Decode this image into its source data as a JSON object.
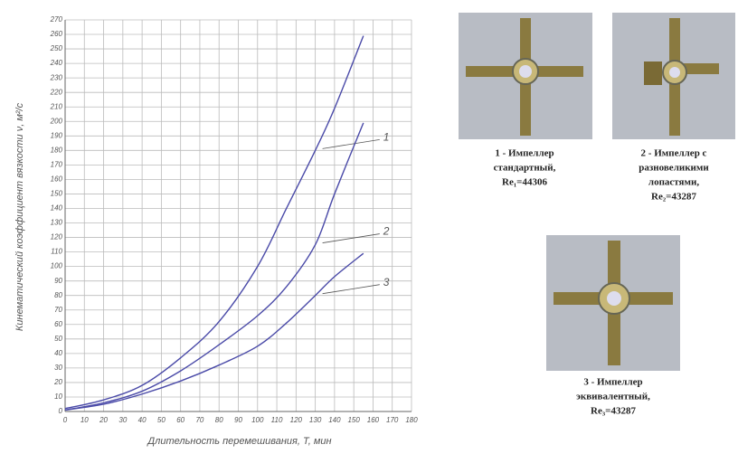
{
  "chart_data": {
    "type": "line",
    "ylabel": "Кинематический коэффициент вязкости ν, м²/с",
    "xlabel": "Длительность перемешивания, T, мин",
    "x": [
      0,
      20,
      40,
      60,
      80,
      100,
      115,
      130,
      140,
      155
    ],
    "series": [
      {
        "name": "1",
        "color": "#4a4aa8",
        "values": [
          2,
          8,
          18,
          37,
          62,
          100,
          140,
          180,
          209,
          259
        ]
      },
      {
        "name": "2",
        "color": "#4a4aa8",
        "values": [
          1,
          6,
          14,
          28,
          46,
          66,
          86,
          115,
          150,
          199
        ]
      },
      {
        "name": "3",
        "color": "#4a4aa8",
        "values": [
          1,
          5,
          12,
          21,
          32,
          45,
          61,
          80,
          93,
          109
        ]
      }
    ],
    "xlim": [
      0,
      180
    ],
    "xticks": [
      0,
      10,
      20,
      30,
      40,
      50,
      60,
      70,
      80,
      90,
      100,
      110,
      120,
      130,
      140,
      150,
      160,
      170,
      180
    ],
    "ylim": [
      0,
      270
    ],
    "yticks": [
      0,
      10,
      20,
      30,
      40,
      50,
      60,
      70,
      80,
      90,
      100,
      110,
      120,
      130,
      140,
      150,
      160,
      170,
      180,
      190,
      200,
      210,
      220,
      230,
      240,
      250,
      260,
      270
    ],
    "grid": true
  },
  "photos": [
    {
      "lines": [
        "1 - Импеллер",
        "стандартный,",
        "Re₁=44306"
      ]
    },
    {
      "lines": [
        "2 - Импеллер с",
        "разновеликими",
        "лопастями,",
        "Re₂=43287"
      ]
    },
    {
      "lines": [
        "3 - Импеллер",
        "эквивалентный,",
        "Re₃=43287"
      ]
    }
  ]
}
